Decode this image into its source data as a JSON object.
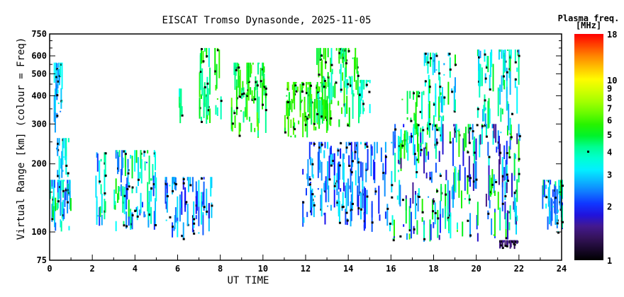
{
  "chart_data": {
    "type": "scatter",
    "title": "EISCAT Tromso Dynasonde, 2025-11-05",
    "xlabel": "UT TIME",
    "ylabel": "Virtual Range [km] (colour = Freq)",
    "xlim": [
      0,
      24
    ],
    "ylim": [
      75,
      750
    ],
    "yscale": "log",
    "xticks": [
      "0",
      "2",
      "4",
      "6",
      "8",
      "10",
      "12",
      "14",
      "16",
      "18",
      "20",
      "22",
      "24"
    ],
    "yticks": [
      "75",
      "100",
      "200",
      "300",
      "400",
      "500",
      "600",
      "750"
    ],
    "colorbar": {
      "title": "Plasma freq.",
      "unit": "[MHz]",
      "range": [
        1,
        18
      ],
      "scale": "log",
      "ticks": [
        "1",
        "2",
        "3",
        "4",
        "5",
        "6",
        "7",
        "8",
        "9",
        "10",
        "18"
      ],
      "marker_value": 4
    },
    "clusters": [
      {
        "t": [
          0.0,
          1.0
        ],
        "r": [
          100,
          170
        ],
        "f": [
          2,
          5.5
        ]
      },
      {
        "t": [
          0.15,
          0.55
        ],
        "r": [
          270,
          560
        ],
        "f": [
          2.3,
          3.6
        ]
      },
      {
        "t": [
          0.3,
          0.9
        ],
        "r": [
          170,
          260
        ],
        "f": [
          2.5,
          4
        ]
      },
      {
        "t": [
          2.1,
          2.6
        ],
        "r": [
          105,
          225
        ],
        "f": [
          2,
          5
        ]
      },
      {
        "t": [
          3.0,
          5.0
        ],
        "r": [
          100,
          230
        ],
        "f": [
          2,
          5.5
        ]
      },
      {
        "t": [
          5.4,
          7.6
        ],
        "r": [
          90,
          175
        ],
        "f": [
          1.8,
          3.5
        ]
      },
      {
        "t": [
          6.05,
          6.2
        ],
        "r": [
          300,
          430
        ],
        "f": [
          2.8,
          5
        ]
      },
      {
        "t": [
          7.0,
          8.0
        ],
        "r": [
          300,
          650
        ],
        "f": [
          3.5,
          6
        ]
      },
      {
        "t": [
          8.5,
          10.1
        ],
        "r": [
          255,
          560
        ],
        "f": [
          4,
          6.5
        ]
      },
      {
        "t": [
          11.0,
          13.0
        ],
        "r": [
          260,
          460
        ],
        "f": [
          4.5,
          6.5
        ]
      },
      {
        "t": [
          12.5,
          14.5
        ],
        "r": [
          290,
          650
        ],
        "f": [
          3.5,
          6
        ]
      },
      {
        "t": [
          14.5,
          15.0
        ],
        "r": [
          330,
          470
        ],
        "f": [
          3,
          5
        ]
      },
      {
        "t": [
          11.8,
          16.0
        ],
        "r": [
          100,
          250
        ],
        "f": [
          1.8,
          3.2
        ]
      },
      {
        "t": [
          16.0,
          22.0
        ],
        "r": [
          90,
          300
        ],
        "f": [
          1.5,
          6
        ]
      },
      {
        "t": [
          16.5,
          17.5
        ],
        "r": [
          200,
          420
        ],
        "f": [
          3,
          6
        ]
      },
      {
        "t": [
          17.5,
          19.0
        ],
        "r": [
          250,
          620
        ],
        "f": [
          2.5,
          5.5
        ]
      },
      {
        "t": [
          20.0,
          22.0
        ],
        "r": [
          250,
          640
        ],
        "f": [
          2.5,
          5
        ]
      },
      {
        "t": [
          21.0,
          21.9
        ],
        "r": [
          84,
          92
        ],
        "f": [
          1.3,
          1.6
        ]
      },
      {
        "t": [
          23.0,
          24.0
        ],
        "r": [
          100,
          170
        ],
        "f": [
          2,
          5
        ]
      }
    ]
  }
}
